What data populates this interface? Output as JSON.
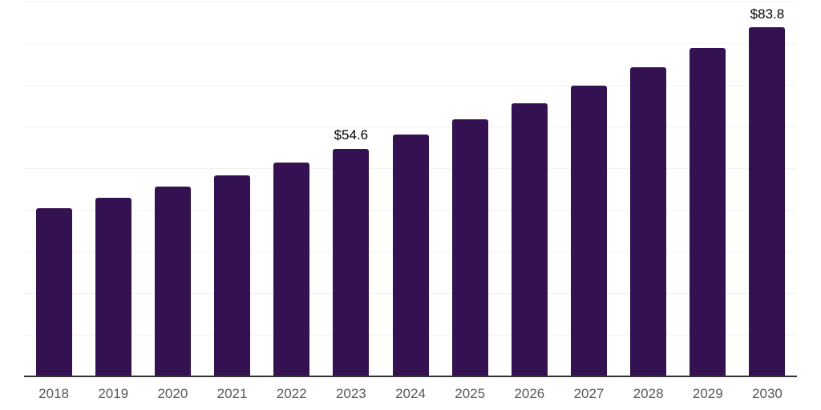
{
  "page": {
    "background_color": "#ffffff"
  },
  "chart_data": {
    "type": "bar",
    "title": "",
    "xlabel": "",
    "ylabel": "",
    "categories": [
      "2018",
      "2019",
      "2020",
      "2021",
      "2022",
      "2023",
      "2024",
      "2025",
      "2026",
      "2027",
      "2028",
      "2029",
      "2030"
    ],
    "values": [
      40.3,
      42.9,
      45.5,
      48.3,
      51.4,
      54.6,
      58.0,
      61.7,
      65.6,
      69.8,
      74.2,
      78.9,
      83.8
    ],
    "data_labels": {
      "2023": "$54.6",
      "2030": "$83.8"
    },
    "ylim": [
      0,
      90
    ],
    "grid_step": 10,
    "grid": true,
    "y_axis_tick_labels": false,
    "legend": false,
    "colors": {
      "bar": "#341150",
      "gridline": "#f2f2f2",
      "axis_line": "#343434",
      "tick_label": "#58595b",
      "data_label": "#000000"
    }
  }
}
